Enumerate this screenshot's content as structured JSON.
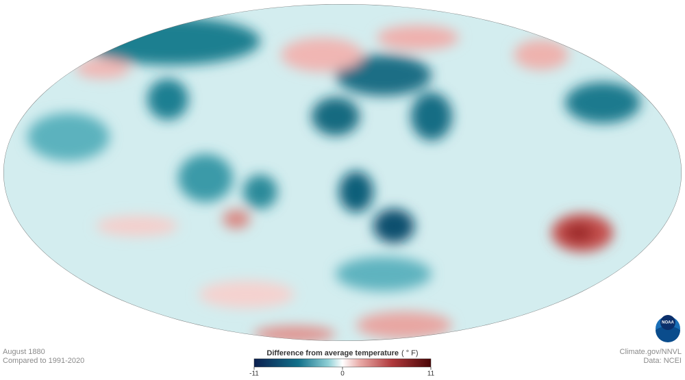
{
  "map": {
    "date": "August 1880",
    "baseline": "Compared to 1991-2020",
    "credit": "Climate.gov/NNVL",
    "source": "Data: NCEI",
    "logo": "NOAA"
  },
  "legend": {
    "title": "Difference from average temperature",
    "unit": "( ° F)",
    "range": [
      -11,
      11
    ],
    "ticks": [
      -11,
      0,
      11
    ]
  }
}
